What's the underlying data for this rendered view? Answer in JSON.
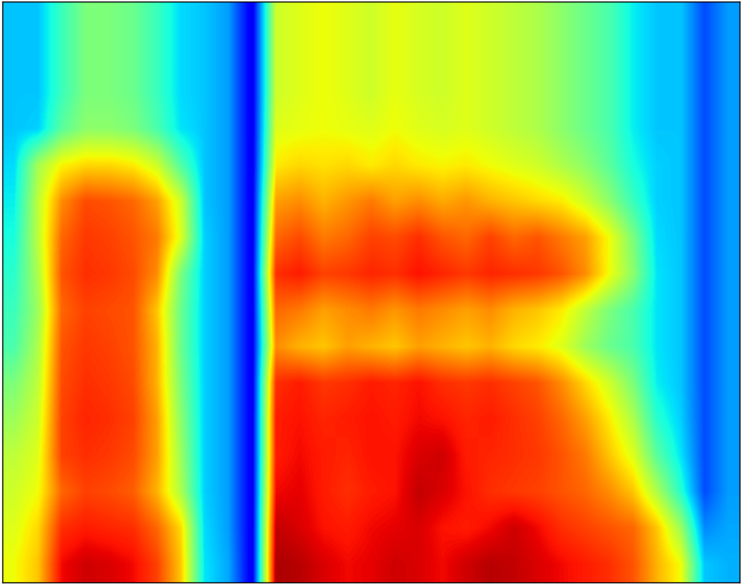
{
  "chart_data": {
    "type": "heatmap",
    "tick_labels": false,
    "clim": [
      0,
      10
    ],
    "cells": [
      [
        3.2,
        3.2,
        4.2,
        5,
        5,
        4.8,
        4.2,
        3.4,
        3.2,
        2.8,
        1,
        6,
        6.2,
        6.4,
        6.2,
        6,
        6.3,
        6.1,
        6,
        6.2,
        6,
        5.8,
        5.6,
        5.2,
        4.8,
        4.4,
        3.6,
        3.2,
        3.2,
        2,
        2.8
      ],
      [
        3.2,
        3.2,
        4.2,
        5,
        5,
        4.8,
        4.2,
        3.4,
        3.2,
        2.8,
        1,
        6,
        6.2,
        6.4,
        6.2,
        6,
        6.3,
        6.1,
        6,
        6.2,
        6,
        5.8,
        5.6,
        5.2,
        4.8,
        4.4,
        3.6,
        3.2,
        3.2,
        2,
        2.8
      ],
      [
        3.2,
        3.2,
        4.2,
        5,
        5,
        4.8,
        4.2,
        3.4,
        3.2,
        2.8,
        1,
        6,
        6.2,
        6.4,
        6.2,
        6,
        6.3,
        6.1,
        6,
        6.2,
        6,
        5.8,
        5.6,
        5.2,
        4.8,
        4.4,
        3.6,
        3.2,
        3.2,
        2,
        2.8
      ],
      [
        3.2,
        3.3,
        4.6,
        5.2,
        5.2,
        5,
        4.4,
        3.5,
        3.2,
        2.8,
        1,
        6.2,
        6.3,
        6.4,
        6.3,
        6.2,
        6.4,
        6.2,
        6.1,
        6.2,
        6,
        5.8,
        5.6,
        5.2,
        4.8,
        4.4,
        3.6,
        3.2,
        3.2,
        2,
        2.8
      ],
      [
        3.4,
        5.5,
        6.5,
        6.8,
        6.8,
        6.6,
        6,
        4.5,
        3.2,
        2.8,
        1,
        6.6,
        6.8,
        6.7,
        6.8,
        6.6,
        6.8,
        6.6,
        6.5,
        6.6,
        6.4,
        6.2,
        6,
        5.6,
        5.2,
        4.6,
        3.8,
        3.3,
        3.2,
        2,
        2.8
      ],
      [
        3.6,
        5.8,
        7.6,
        8.3,
        8.2,
        8,
        7.4,
        6,
        3.2,
        2.8,
        1,
        7.4,
        7.6,
        7.2,
        7.5,
        7.8,
        7.4,
        7.6,
        7.3,
        7.5,
        7.2,
        7,
        6.8,
        6.6,
        6,
        5.2,
        4.2,
        3.3,
        3.2,
        2,
        2.8
      ],
      [
        3.8,
        5.8,
        8,
        8.5,
        8.4,
        8.2,
        7.8,
        6.2,
        3.3,
        2.8,
        1,
        8,
        8.3,
        7.8,
        8,
        8.4,
        8.3,
        8.6,
        8.2,
        8,
        8.4,
        8,
        8.2,
        7.8,
        7.4,
        6.4,
        5,
        3.4,
        3.2,
        2,
        2.8
      ],
      [
        4,
        5.6,
        8.2,
        8.6,
        8.5,
        8.3,
        7.6,
        5,
        3.3,
        2.8,
        1,
        8.6,
        8.8,
        8.4,
        8.5,
        8.7,
        8.6,
        8.9,
        8.7,
        8.5,
        8.7,
        8.6,
        8.5,
        8.2,
        7.6,
        6.4,
        5.2,
        3.5,
        3.2,
        2,
        2.8
      ],
      [
        4.2,
        5.4,
        8,
        8.4,
        8.3,
        8.2,
        7,
        4.8,
        3.3,
        2.8,
        1,
        8,
        7.8,
        7.4,
        7.6,
        7.8,
        7.5,
        7.8,
        7.6,
        7.4,
        7.6,
        7.2,
        7,
        6.6,
        5.8,
        5,
        4.4,
        3.5,
        3.2,
        2,
        2.8
      ],
      [
        4.4,
        5.6,
        8.2,
        8.5,
        8.4,
        8.2,
        7.2,
        4.8,
        3.3,
        2.8,
        1,
        7.6,
        7.2,
        7,
        7.4,
        7.2,
        7,
        7.4,
        7.2,
        7,
        7.2,
        6.8,
        6.6,
        6.2,
        5.4,
        4.8,
        4.4,
        3.5,
        3.2,
        2,
        2.8
      ],
      [
        5,
        5.8,
        8.3,
        8.6,
        8.5,
        8.3,
        7.2,
        5,
        3.3,
        2.8,
        1,
        8.6,
        8.8,
        8.5,
        8.6,
        8.8,
        8.7,
        8.9,
        8.6,
        8.5,
        8.6,
        8.4,
        8.2,
        7.6,
        6.8,
        6,
        5,
        3.6,
        3.2,
        2,
        2.8
      ],
      [
        5.4,
        6,
        8.4,
        8.7,
        8.6,
        8.4,
        7.4,
        5.2,
        3.3,
        2.8,
        1,
        8.8,
        8.9,
        8.7,
        8.8,
        8.9,
        8.8,
        9,
        8.9,
        8.7,
        8.8,
        8.6,
        8.4,
        8,
        7.4,
        6.6,
        5.6,
        4,
        3.3,
        2,
        2.8
      ],
      [
        5.8,
        6.2,
        8.4,
        8.6,
        8.5,
        8.3,
        7.4,
        5.4,
        3.3,
        2.8,
        1,
        8.8,
        9,
        8.8,
        8.7,
        8.9,
        8.9,
        9.2,
        9.3,
        8.8,
        8.7,
        8.6,
        8.5,
        8.2,
        7.8,
        7,
        6.2,
        4.6,
        3.5,
        2,
        2.8
      ],
      [
        6,
        6.4,
        8,
        8.4,
        8.3,
        8.1,
        7.2,
        5.6,
        3.3,
        2.8,
        1,
        9,
        9.1,
        8.8,
        8.6,
        8.8,
        8.9,
        9.4,
        9.2,
        8.9,
        8.6,
        8.5,
        8.4,
        8.2,
        8,
        7.6,
        7,
        5.6,
        4,
        2,
        2.8
      ],
      [
        6.2,
        6.8,
        8.6,
        8.8,
        8.7,
        8.6,
        8,
        6.8,
        3.4,
        2.8,
        1,
        9.4,
        9.2,
        8.9,
        8.8,
        9,
        9.1,
        9.2,
        8.9,
        8.8,
        9,
        9.3,
        9,
        8.6,
        8.4,
        8.2,
        8,
        7,
        5.4,
        2.6,
        2.9
      ],
      [
        6.4,
        7,
        9,
        9.3,
        9.2,
        9,
        8.4,
        7,
        3.5,
        2.9,
        1,
        9.6,
        9.5,
        9.2,
        9,
        9.1,
        9.3,
        9.2,
        9,
        9.3,
        9.5,
        9.4,
        9.2,
        9,
        8.8,
        8.6,
        8.2,
        7.2,
        6.4,
        3.2,
        3
      ]
    ]
  }
}
